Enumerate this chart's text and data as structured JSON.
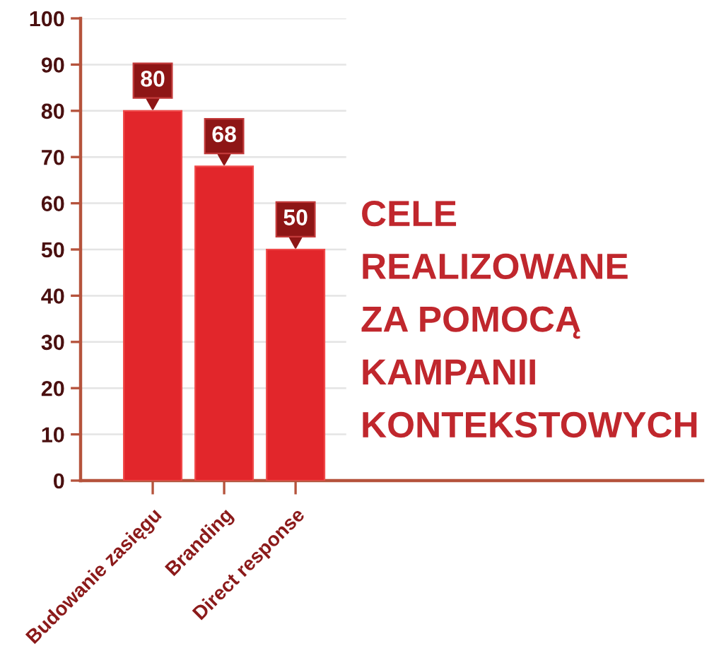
{
  "chart_data": {
    "type": "bar",
    "title": "CELE\nREALIZOWANE\nZA POMOCĄ\nKAMPANII\nKONTEKSTOWYCH",
    "categories": [
      "Budowanie zasięgu",
      "Branding",
      "Direct response"
    ],
    "values": [
      80,
      68,
      50
    ],
    "color": "#e2262b",
    "ylim": [
      0,
      100
    ],
    "yticks": [
      0,
      10,
      20,
      30,
      40,
      50,
      60,
      70,
      80,
      90,
      100
    ],
    "grid": "y",
    "data_labels": true
  }
}
